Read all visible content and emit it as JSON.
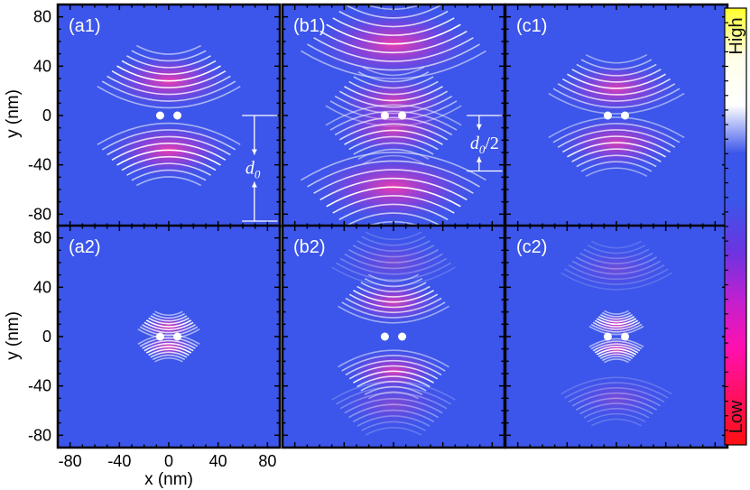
{
  "chart_data": {
    "type": "heatmap",
    "title": "",
    "xlabel": "x (nm)",
    "ylabel": "y (nm)",
    "xlim": [
      -90,
      90
    ],
    "ylim": [
      -90,
      90
    ],
    "x_ticks": [
      -80,
      -40,
      0,
      40,
      80
    ],
    "x_tick_labels": [
      "-80",
      "-40",
      "0",
      "40",
      "80"
    ],
    "y_ticks": [
      80,
      40,
      0,
      -40,
      -80
    ],
    "y_tick_labels": [
      "80",
      "40",
      "0",
      "-40",
      "-80"
    ],
    "colorbar": {
      "high_label": "High",
      "low_label": "Low",
      "colors": [
        "#ffff2a",
        "#ffffe8",
        "#ffffff",
        "#3c55ea",
        "#3c55ea",
        "#6a35e0",
        "#c020d0",
        "#ff10b0",
        "#ff1060",
        "#ff1010"
      ]
    },
    "background_color": "#3c55ea",
    "dots": [
      {
        "x": -7,
        "y": 0
      },
      {
        "x": 7,
        "y": 0
      }
    ],
    "panels": [
      {
        "id": "a1",
        "label": "(a1)",
        "lobes": [
          {
            "y": 28,
            "dir": -1,
            "intensity": 1.0,
            "width": 58
          },
          {
            "y": -28,
            "dir": 1,
            "intensity": 1.0,
            "width": 58
          }
        ]
      },
      {
        "id": "b1",
        "label": "(b1)",
        "lobes": [
          {
            "y": 58,
            "dir": -1,
            "intensity": 1.0,
            "width": 75
          },
          {
            "y": 12,
            "dir": -1,
            "intensity": 0.85,
            "width": 55
          },
          {
            "y": -12,
            "dir": 1,
            "intensity": 0.85,
            "width": 55
          },
          {
            "y": -58,
            "dir": 1,
            "intensity": 1.0,
            "width": 75
          }
        ]
      },
      {
        "id": "c1",
        "label": "(c1)",
        "lobes": [
          {
            "y": 22,
            "dir": -1,
            "intensity": 0.9,
            "width": 55
          },
          {
            "y": -22,
            "dir": 1,
            "intensity": 0.9,
            "width": 55
          }
        ]
      },
      {
        "id": "a2",
        "label": "(a2)",
        "lobes": [
          {
            "y": 8,
            "dir": -1,
            "intensity": 1.0,
            "width": 25
          },
          {
            "y": -8,
            "dir": 1,
            "intensity": 1.0,
            "width": 25
          }
        ]
      },
      {
        "id": "b2",
        "label": "(b2)",
        "lobes": [
          {
            "y": 60,
            "dir": -1,
            "intensity": 0.35,
            "width": 50
          },
          {
            "y": 28,
            "dir": -1,
            "intensity": 0.9,
            "width": 45
          },
          {
            "y": -28,
            "dir": 1,
            "intensity": 0.9,
            "width": 45
          },
          {
            "y": -55,
            "dir": 1,
            "intensity": 0.4,
            "width": 50
          }
        ]
      },
      {
        "id": "c2",
        "label": "(c2)",
        "lobes": [
          {
            "y": 55,
            "dir": -1,
            "intensity": 0.3,
            "width": 45
          },
          {
            "y": 10,
            "dir": -1,
            "intensity": 1.0,
            "width": 22
          },
          {
            "y": -10,
            "dir": 1,
            "intensity": 1.0,
            "width": 22
          },
          {
            "y": -50,
            "dir": 1,
            "intensity": 0.35,
            "width": 45
          }
        ]
      }
    ],
    "annotations": [
      {
        "panel": "a1",
        "symbol": "d",
        "subscript": "0",
        "suffix": "",
        "y_top": 0,
        "y_bottom": -90
      },
      {
        "panel": "b1",
        "symbol": "d",
        "subscript": "0",
        "suffix": "/2",
        "y_top": 0,
        "y_bottom": -45
      }
    ]
  }
}
